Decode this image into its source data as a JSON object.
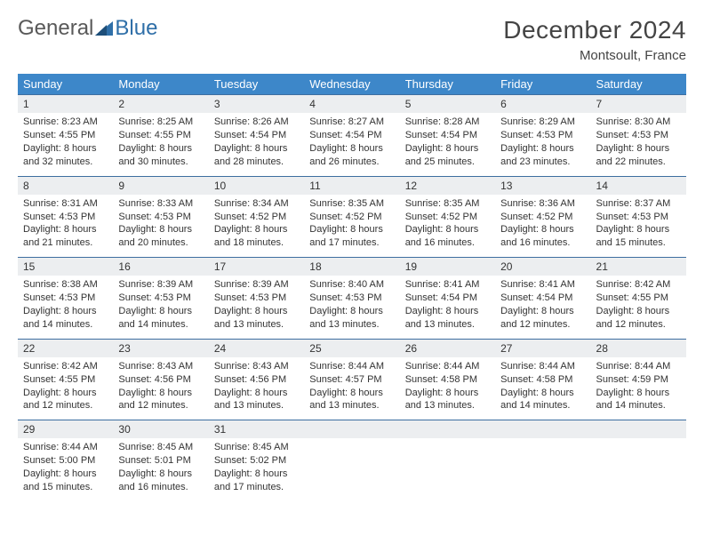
{
  "logo": {
    "word1": "General",
    "word2": "Blue"
  },
  "header": {
    "title": "December 2024",
    "location": "Montsoult, France"
  },
  "styling": {
    "header_bg": "#3d87c9",
    "header_text": "#ffffff",
    "daynum_bg": "#eceef0",
    "row_border": "#3d6ea0",
    "title_fontsize": 28,
    "location_fontsize": 15,
    "cell_fontsize": 11
  },
  "weekdays": [
    "Sunday",
    "Monday",
    "Tuesday",
    "Wednesday",
    "Thursday",
    "Friday",
    "Saturday"
  ],
  "weeks": [
    [
      {
        "n": "1",
        "sunrise": "8:23 AM",
        "sunset": "4:55 PM",
        "daylight": "8 hours and 32 minutes."
      },
      {
        "n": "2",
        "sunrise": "8:25 AM",
        "sunset": "4:55 PM",
        "daylight": "8 hours and 30 minutes."
      },
      {
        "n": "3",
        "sunrise": "8:26 AM",
        "sunset": "4:54 PM",
        "daylight": "8 hours and 28 minutes."
      },
      {
        "n": "4",
        "sunrise": "8:27 AM",
        "sunset": "4:54 PM",
        "daylight": "8 hours and 26 minutes."
      },
      {
        "n": "5",
        "sunrise": "8:28 AM",
        "sunset": "4:54 PM",
        "daylight": "8 hours and 25 minutes."
      },
      {
        "n": "6",
        "sunrise": "8:29 AM",
        "sunset": "4:53 PM",
        "daylight": "8 hours and 23 minutes."
      },
      {
        "n": "7",
        "sunrise": "8:30 AM",
        "sunset": "4:53 PM",
        "daylight": "8 hours and 22 minutes."
      }
    ],
    [
      {
        "n": "8",
        "sunrise": "8:31 AM",
        "sunset": "4:53 PM",
        "daylight": "8 hours and 21 minutes."
      },
      {
        "n": "9",
        "sunrise": "8:33 AM",
        "sunset": "4:53 PM",
        "daylight": "8 hours and 20 minutes."
      },
      {
        "n": "10",
        "sunrise": "8:34 AM",
        "sunset": "4:52 PM",
        "daylight": "8 hours and 18 minutes."
      },
      {
        "n": "11",
        "sunrise": "8:35 AM",
        "sunset": "4:52 PM",
        "daylight": "8 hours and 17 minutes."
      },
      {
        "n": "12",
        "sunrise": "8:35 AM",
        "sunset": "4:52 PM",
        "daylight": "8 hours and 16 minutes."
      },
      {
        "n": "13",
        "sunrise": "8:36 AM",
        "sunset": "4:52 PM",
        "daylight": "8 hours and 16 minutes."
      },
      {
        "n": "14",
        "sunrise": "8:37 AM",
        "sunset": "4:53 PM",
        "daylight": "8 hours and 15 minutes."
      }
    ],
    [
      {
        "n": "15",
        "sunrise": "8:38 AM",
        "sunset": "4:53 PM",
        "daylight": "8 hours and 14 minutes."
      },
      {
        "n": "16",
        "sunrise": "8:39 AM",
        "sunset": "4:53 PM",
        "daylight": "8 hours and 14 minutes."
      },
      {
        "n": "17",
        "sunrise": "8:39 AM",
        "sunset": "4:53 PM",
        "daylight": "8 hours and 13 minutes."
      },
      {
        "n": "18",
        "sunrise": "8:40 AM",
        "sunset": "4:53 PM",
        "daylight": "8 hours and 13 minutes."
      },
      {
        "n": "19",
        "sunrise": "8:41 AM",
        "sunset": "4:54 PM",
        "daylight": "8 hours and 13 minutes."
      },
      {
        "n": "20",
        "sunrise": "8:41 AM",
        "sunset": "4:54 PM",
        "daylight": "8 hours and 12 minutes."
      },
      {
        "n": "21",
        "sunrise": "8:42 AM",
        "sunset": "4:55 PM",
        "daylight": "8 hours and 12 minutes."
      }
    ],
    [
      {
        "n": "22",
        "sunrise": "8:42 AM",
        "sunset": "4:55 PM",
        "daylight": "8 hours and 12 minutes."
      },
      {
        "n": "23",
        "sunrise": "8:43 AM",
        "sunset": "4:56 PM",
        "daylight": "8 hours and 12 minutes."
      },
      {
        "n": "24",
        "sunrise": "8:43 AM",
        "sunset": "4:56 PM",
        "daylight": "8 hours and 13 minutes."
      },
      {
        "n": "25",
        "sunrise": "8:44 AM",
        "sunset": "4:57 PM",
        "daylight": "8 hours and 13 minutes."
      },
      {
        "n": "26",
        "sunrise": "8:44 AM",
        "sunset": "4:58 PM",
        "daylight": "8 hours and 13 minutes."
      },
      {
        "n": "27",
        "sunrise": "8:44 AM",
        "sunset": "4:58 PM",
        "daylight": "8 hours and 14 minutes."
      },
      {
        "n": "28",
        "sunrise": "8:44 AM",
        "sunset": "4:59 PM",
        "daylight": "8 hours and 14 minutes."
      }
    ],
    [
      {
        "n": "29",
        "sunrise": "8:44 AM",
        "sunset": "5:00 PM",
        "daylight": "8 hours and 15 minutes."
      },
      {
        "n": "30",
        "sunrise": "8:45 AM",
        "sunset": "5:01 PM",
        "daylight": "8 hours and 16 minutes."
      },
      {
        "n": "31",
        "sunrise": "8:45 AM",
        "sunset": "5:02 PM",
        "daylight": "8 hours and 17 minutes."
      },
      {
        "empty": true
      },
      {
        "empty": true
      },
      {
        "empty": true
      },
      {
        "empty": true
      }
    ]
  ],
  "labels": {
    "sunrise": "Sunrise: ",
    "sunset": "Sunset: ",
    "daylight": "Daylight: "
  }
}
